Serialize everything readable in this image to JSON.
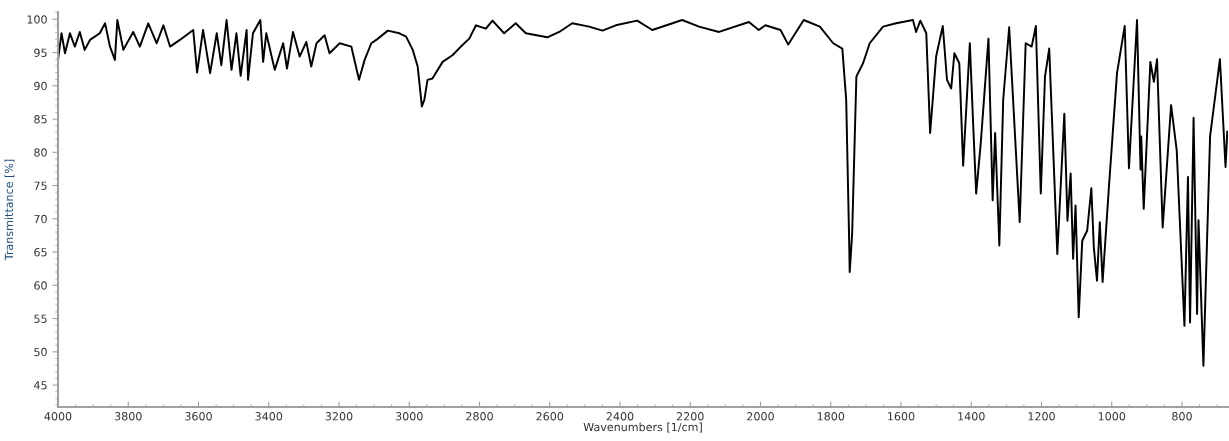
{
  "chart_data": {
    "type": "line",
    "xlabel": "Wavenumbers [1/cm]",
    "ylabel": "Transmittance [%]",
    "xlim": [
      4000,
      669
    ],
    "ylim": [
      41.7,
      101.1
    ],
    "xticks": [
      4000,
      3800,
      3600,
      3400,
      3200,
      3000,
      2800,
      2600,
      2400,
      2200,
      2000,
      1800,
      1600,
      1400,
      1200,
      1000,
      800
    ],
    "yticks": [
      45,
      50,
      55,
      60,
      65,
      70,
      75,
      80,
      85,
      90,
      95,
      100
    ],
    "grid": false,
    "legend": false,
    "marker": "none",
    "line_style": "solid",
    "series": [
      {
        "color": "#000000",
        "x": [
          4000,
          3990,
          3980,
          3966,
          3952,
          3938,
          3924,
          3909,
          3881,
          3866,
          3852,
          3838,
          3831,
          3814,
          3786,
          3767,
          3743,
          3719,
          3700,
          3681,
          3653,
          3615,
          3604,
          3587,
          3567,
          3548,
          3535,
          3520,
          3506,
          3492,
          3480,
          3463,
          3459,
          3445,
          3424,
          3416,
          3407,
          3383,
          3359,
          3348,
          3331,
          3312,
          3293,
          3279,
          3264,
          3241,
          3227,
          3198,
          3165,
          3143,
          3127,
          3108,
          3094,
          3061,
          3028,
          3009,
          2990,
          2976,
          2964,
          2957,
          2948,
          2934,
          2905,
          2877,
          2853,
          2829,
          2810,
          2782,
          2763,
          2730,
          2697,
          2668,
          2607,
          2573,
          2536,
          2488,
          2450,
          2412,
          2351,
          2308,
          2223,
          2175,
          2118,
          2033,
          2005,
          1986,
          1943,
          1921,
          1877,
          1831,
          1793,
          1767,
          1756,
          1748,
          1746,
          1739,
          1727,
          1708,
          1689,
          1651,
          1614,
          1566,
          1557,
          1545,
          1528,
          1517,
          1500,
          1481,
          1469,
          1457,
          1448,
          1434,
          1423,
          1404,
          1395,
          1386,
          1373,
          1351,
          1339,
          1332,
          1320,
          1309,
          1292,
          1262,
          1245,
          1228,
          1216,
          1202,
          1190,
          1178,
          1155,
          1135,
          1126,
          1117,
          1110,
          1103,
          1094,
          1084,
          1070,
          1058,
          1051,
          1042,
          1034,
          1026,
          1008,
          985,
          963,
          951,
          928,
          918,
          916,
          909,
          890,
          880,
          871,
          855,
          831,
          815,
          793,
          783,
          777,
          767,
          757,
          753,
          739,
          720,
          692,
          676,
          671
        ],
        "values": [
          93.9,
          97.9,
          94.9,
          97.9,
          95.9,
          98.1,
          95.4,
          96.9,
          97.9,
          99.4,
          95.9,
          93.9,
          99.9,
          95.4,
          98.1,
          95.9,
          99.4,
          96.4,
          99.1,
          95.9,
          96.9,
          98.4,
          92.0,
          98.4,
          91.9,
          97.9,
          93.1,
          99.9,
          92.4,
          97.9,
          91.5,
          98.4,
          90.9,
          97.9,
          99.9,
          93.6,
          97.9,
          92.4,
          96.4,
          92.6,
          98.1,
          94.4,
          96.6,
          92.9,
          96.4,
          97.6,
          94.9,
          96.4,
          95.9,
          90.9,
          93.9,
          96.4,
          96.9,
          98.3,
          97.9,
          97.4,
          95.4,
          92.9,
          86.9,
          87.9,
          90.9,
          91.1,
          93.6,
          94.6,
          95.9,
          97.1,
          99.1,
          98.6,
          99.8,
          97.9,
          99.4,
          97.9,
          97.3,
          98.1,
          99.4,
          98.9,
          98.3,
          99.1,
          99.8,
          98.4,
          99.9,
          98.9,
          98.1,
          99.6,
          98.4,
          99.1,
          98.4,
          96.2,
          99.9,
          98.9,
          96.4,
          95.6,
          87.9,
          67.8,
          62.0,
          67.8,
          91.4,
          93.4,
          96.4,
          98.9,
          99.4,
          99.9,
          98.1,
          99.8,
          97.9,
          82.9,
          94.4,
          99.0,
          90.9,
          89.6,
          94.9,
          93.4,
          78.0,
          96.4,
          84.8,
          73.8,
          81.3,
          97.1,
          72.8,
          82.9,
          66.0,
          87.9,
          98.8,
          69.5,
          96.4,
          95.9,
          99.0,
          73.8,
          91.4,
          95.6,
          64.7,
          85.8,
          69.7,
          76.8,
          64.0,
          72.0,
          55.2,
          66.7,
          68.2,
          74.6,
          65.7,
          60.7,
          69.5,
          60.5,
          74.8,
          91.9,
          99.0,
          77.6,
          99.9,
          77.4,
          82.4,
          71.5,
          93.6,
          90.6,
          94.0,
          68.7,
          87.1,
          80.3,
          53.9,
          76.3,
          54.4,
          85.2,
          55.7,
          69.8,
          47.9,
          82.4,
          94.0,
          77.8,
          83.1
        ]
      }
    ]
  }
}
